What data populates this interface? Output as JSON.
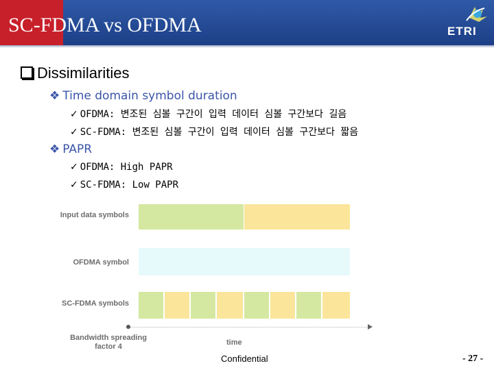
{
  "slide": {
    "title": "SC-FDMA vs OFDMA",
    "logo_text": "ETRI",
    "heading": "Dissimilarities",
    "bullets": [
      {
        "label": "Time domain symbol duration",
        "subitems": [
          "OFDMA: 변조된 심볼 구간이 입력 데이터 심볼 구간보다 길음",
          "SC-FDMA: 변조된 심볼 구간이 입력 데이터 심볼 구간보다 짧음"
        ]
      },
      {
        "label": "PAPR",
        "subitems": [
          "OFDMA: High PAPR",
          "SC-FDMA: Low PAPR"
        ]
      }
    ],
    "figure": {
      "rows": [
        "Input data symbols",
        "OFDMA symbol",
        "SC-FDMA symbols"
      ],
      "bandwidth_label": "Bandwidth spreading factor 4",
      "time_label": "time"
    },
    "footer": {
      "confidential": "Confidential",
      "page": "- 27 -"
    }
  },
  "colors": {
    "header_blue": "#1d3f86",
    "header_red": "#c8202a",
    "green": "#d5e8a1",
    "yellow": "#fae59a",
    "light_cyan": "#e6f9fb"
  },
  "icons": {
    "heading_bullet": "square-bullet-icon",
    "sub_bullet": "diamond-bullet-icon",
    "item_bullet": "check-icon"
  }
}
